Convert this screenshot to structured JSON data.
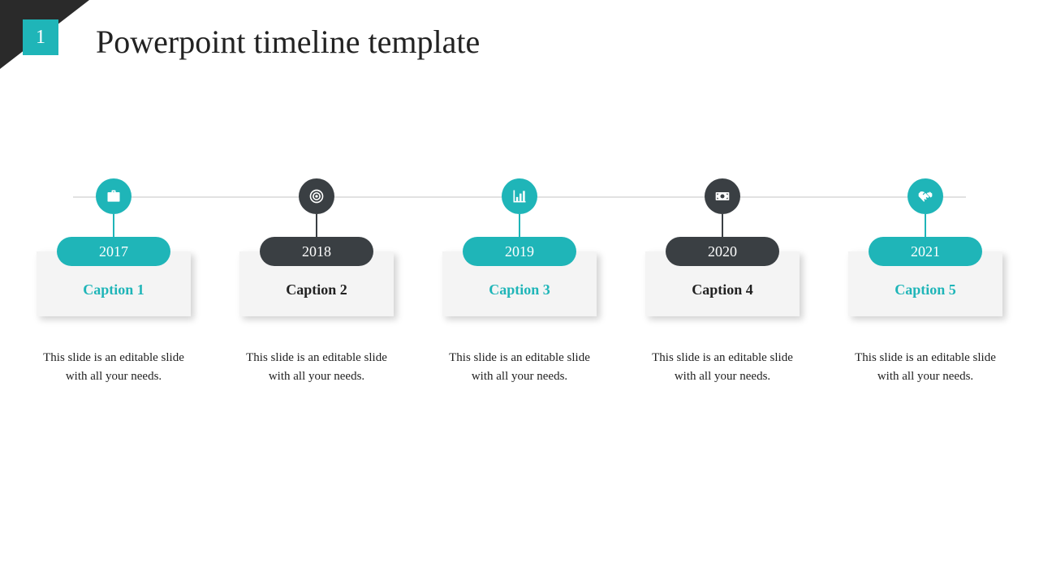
{
  "slide_number": "1",
  "title": "Powerpoint timeline template",
  "colors": {
    "teal": "#1fb5b8",
    "dark": "#3a3f43",
    "card_bg": "#f4f4f4",
    "line": "#e2e2e2",
    "text_dark": "#222222"
  },
  "timeline": {
    "items": [
      {
        "year": "2017",
        "caption": "Caption 1",
        "desc": "This slide is an editable slide with all your needs.",
        "icon": "briefcase",
        "variant": "teal"
      },
      {
        "year": "2018",
        "caption": "Caption 2",
        "desc": "This slide is an editable slide with all your needs.",
        "icon": "target",
        "variant": "dark"
      },
      {
        "year": "2019",
        "caption": "Caption 3",
        "desc": "This slide is an editable slide with all your needs.",
        "icon": "chart",
        "variant": "teal"
      },
      {
        "year": "2020",
        "caption": "Caption 4",
        "desc": "This slide is an editable slide with all your needs.",
        "icon": "money",
        "variant": "dark"
      },
      {
        "year": "2021",
        "caption": "Caption 5",
        "desc": "This slide is an editable slide with all your needs.",
        "icon": "handshake",
        "variant": "teal"
      }
    ]
  }
}
